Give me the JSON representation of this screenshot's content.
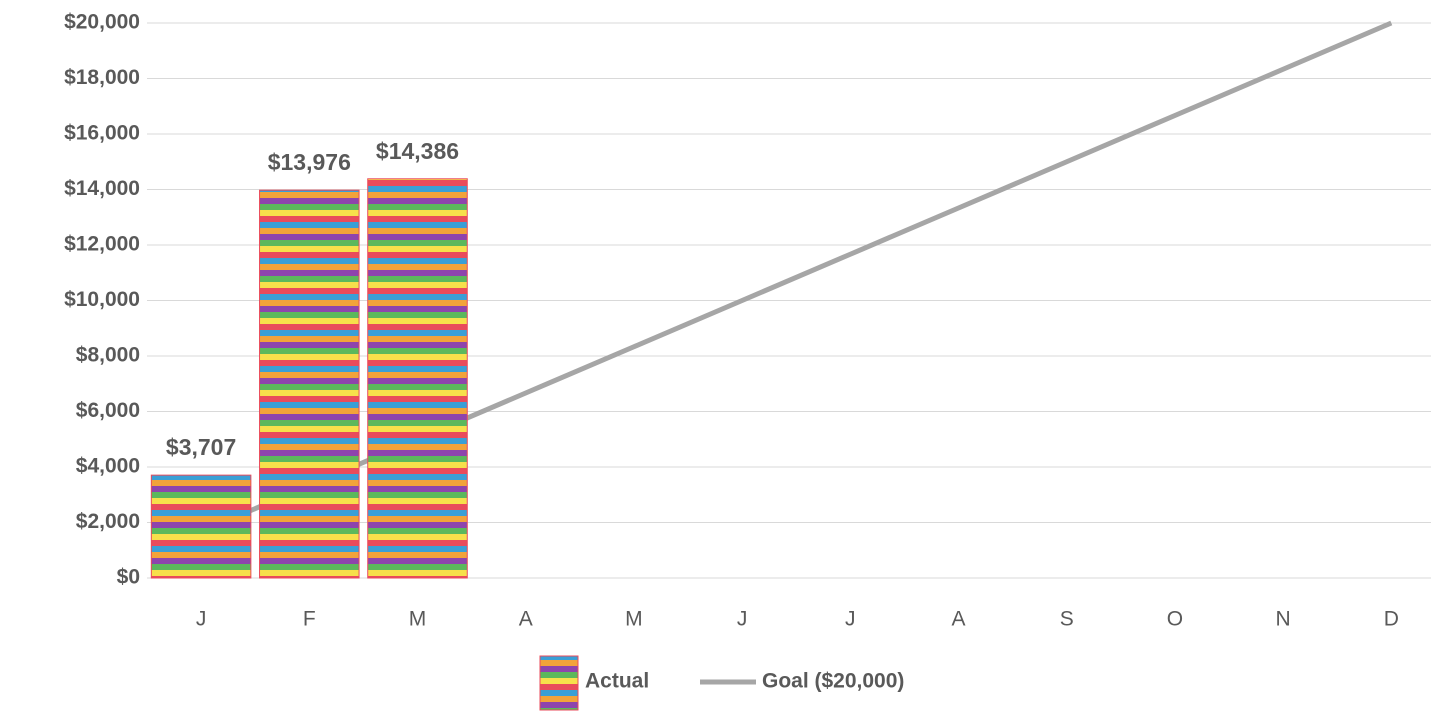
{
  "chart_data": {
    "type": "bar-line",
    "categories": [
      "J",
      "F",
      "M",
      "A",
      "M",
      "J",
      "J",
      "A",
      "S",
      "O",
      "N",
      "D"
    ],
    "series": [
      {
        "name": "Actual",
        "type": "bar",
        "color": "#e94b5b",
        "values": [
          3707,
          13976,
          14386,
          null,
          null,
          null,
          null,
          null,
          null,
          null,
          null,
          null
        ],
        "value_labels": [
          "$3,707",
          "$13,976",
          "$14,386",
          null,
          null,
          null,
          null,
          null,
          null,
          null,
          null,
          null
        ]
      },
      {
        "name": "Goal ($20,000)",
        "type": "line",
        "color": "#a6a6a6",
        "values": [
          1667,
          3333,
          5000,
          6667,
          8333,
          10000,
          11667,
          13333,
          15000,
          16667,
          18333,
          20000
        ]
      }
    ],
    "ylim": [
      0,
      20000
    ],
    "yticks": [
      {
        "value": 0,
        "label": "$0"
      },
      {
        "value": 2000,
        "label": "$2,000"
      },
      {
        "value": 4000,
        "label": "$4,000"
      },
      {
        "value": 6000,
        "label": "$6,000"
      },
      {
        "value": 8000,
        "label": "$8,000"
      },
      {
        "value": 10000,
        "label": "$10,000"
      },
      {
        "value": 12000,
        "label": "$12,000"
      },
      {
        "value": 14000,
        "label": "$14,000"
      },
      {
        "value": 16000,
        "label": "$16,000"
      },
      {
        "value": 18000,
        "label": "$18,000"
      },
      {
        "value": 20000,
        "label": "$20,000"
      }
    ],
    "grid": true,
    "legend": "bottom"
  }
}
